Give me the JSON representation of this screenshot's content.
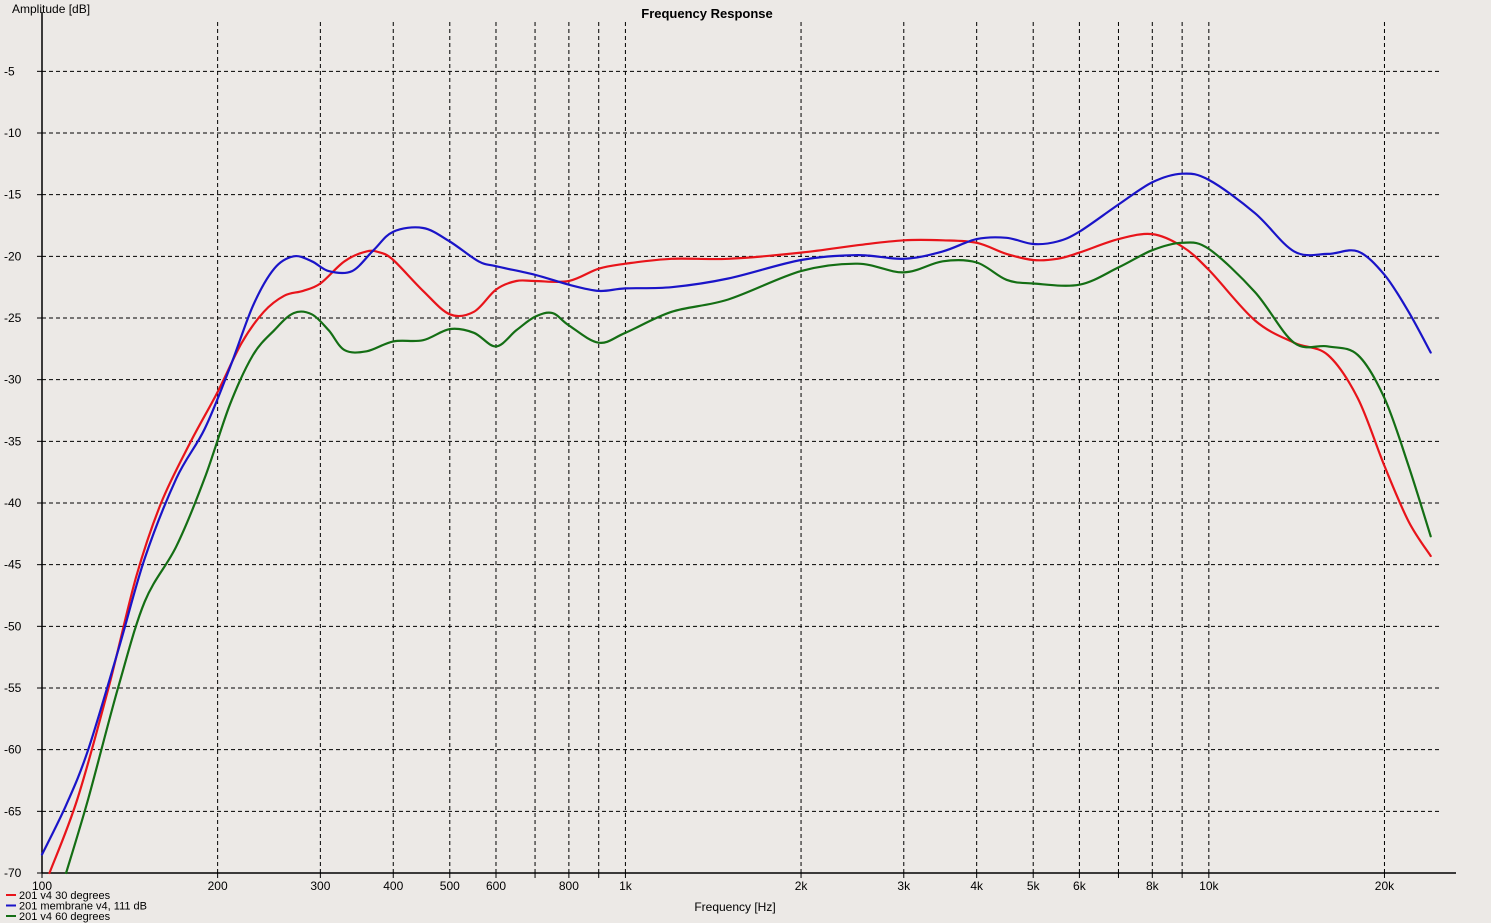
{
  "chart_data": {
    "type": "line",
    "title": "Frequency Response",
    "xlabel": "Frequency [Hz]",
    "ylabel": "Amplitude [dB]",
    "x_scale": "log",
    "xlim": [
      100,
      25000
    ],
    "ylim": [
      -70,
      -1
    ],
    "grid": true,
    "legend_position": "bottom-left",
    "y_ticks": [
      -5,
      -10,
      -15,
      -20,
      -25,
      -30,
      -35,
      -40,
      -45,
      -50,
      -55,
      -60,
      -65,
      -70
    ],
    "x_ticks": [
      {
        "value": 100,
        "label": "100"
      },
      {
        "value": 200,
        "label": "200"
      },
      {
        "value": 300,
        "label": "300"
      },
      {
        "value": 400,
        "label": "400"
      },
      {
        "value": 500,
        "label": "500"
      },
      {
        "value": 600,
        "label": "600"
      },
      {
        "value": 800,
        "label": "800"
      },
      {
        "value": 1000,
        "label": "1k"
      },
      {
        "value": 2000,
        "label": "2k"
      },
      {
        "value": 3000,
        "label": "3k"
      },
      {
        "value": 4000,
        "label": "4k"
      },
      {
        "value": 5000,
        "label": "5k"
      },
      {
        "value": 6000,
        "label": "6k"
      },
      {
        "value": 8000,
        "label": "8k"
      },
      {
        "value": 10000,
        "label": "10k"
      },
      {
        "value": 20000,
        "label": "20k"
      }
    ],
    "minor_x_grid": [
      700,
      900,
      7000,
      9000
    ],
    "series": [
      {
        "name": "201 v4 30 degrees",
        "color": "#e8141a",
        "x": [
          103,
          115,
          130,
          145,
          160,
          180,
          200,
          220,
          240,
          260,
          280,
          300,
          330,
          360,
          380,
          400,
          450,
          500,
          550,
          600,
          650,
          700,
          800,
          900,
          1000,
          1200,
          1500,
          2000,
          2500,
          3000,
          3500,
          4000,
          4500,
          5000,
          5500,
          6000,
          7000,
          8000,
          9000,
          10000,
          12000,
          14000,
          16000,
          18000,
          20000,
          22000,
          24000
        ],
        "y": [
          -70,
          -64,
          -55,
          -46,
          -40,
          -35,
          -31,
          -27,
          -24.5,
          -23.2,
          -22.8,
          -22.2,
          -20.4,
          -19.6,
          -19.7,
          -20.3,
          -22.8,
          -24.7,
          -24.5,
          -22.7,
          -22,
          -22,
          -22,
          -21,
          -20.6,
          -20.2,
          -20.2,
          -19.7,
          -19.1,
          -18.7,
          -18.7,
          -18.9,
          -19.8,
          -20.3,
          -20.2,
          -19.7,
          -18.6,
          -18.2,
          -19.2,
          -21.1,
          -25.2,
          -27,
          -28,
          -31.5,
          -37,
          -41.5,
          -44.3
        ]
      },
      {
        "name": "201 membrane v4, 111 dB",
        "color": "#1a14c8",
        "x": [
          100,
          110,
          120,
          135,
          150,
          170,
          190,
          210,
          230,
          250,
          270,
          290,
          310,
          340,
          370,
          400,
          450,
          500,
          560,
          600,
          700,
          800,
          900,
          1000,
          1200,
          1500,
          2000,
          2500,
          3000,
          3500,
          4000,
          4500,
          5000,
          5500,
          6000,
          7000,
          8000,
          9000,
          10000,
          12000,
          14000,
          16000,
          18000,
          20000,
          22000,
          24000
        ],
        "y": [
          -68.5,
          -64.5,
          -60,
          -52,
          -44.5,
          -38,
          -34,
          -29,
          -24,
          -21,
          -20,
          -20.4,
          -21.2,
          -21.2,
          -19.5,
          -18,
          -17.7,
          -18.8,
          -20.4,
          -20.8,
          -21.5,
          -22.3,
          -22.8,
          -22.6,
          -22.5,
          -21.8,
          -20.3,
          -19.9,
          -20.2,
          -19.6,
          -18.6,
          -18.5,
          -19,
          -18.8,
          -18,
          -15.8,
          -14,
          -13.3,
          -13.8,
          -16.5,
          -19.6,
          -19.8,
          -19.6,
          -21.5,
          -24.5,
          -27.8
        ]
      },
      {
        "name": "201 v4 60 degrees",
        "color": "#146e14",
        "x": [
          110,
          120,
          135,
          150,
          170,
          190,
          210,
          230,
          250,
          270,
          290,
          310,
          330,
          360,
          400,
          450,
          500,
          550,
          600,
          650,
          700,
          750,
          800,
          900,
          1000,
          1200,
          1500,
          2000,
          2500,
          3000,
          3500,
          4000,
          4500,
          5000,
          6000,
          7000,
          8000,
          9000,
          10000,
          12000,
          14000,
          16000,
          18000,
          20000,
          22000,
          24000
        ],
        "y": [
          -70,
          -64,
          -55,
          -48,
          -43.5,
          -38,
          -32,
          -28,
          -26,
          -24.6,
          -24.7,
          -26,
          -27.6,
          -27.7,
          -26.9,
          -26.8,
          -25.9,
          -26.2,
          -27.3,
          -26,
          -24.9,
          -24.6,
          -25.6,
          -27,
          -26.2,
          -24.5,
          -23.5,
          -21.2,
          -20.6,
          -21.3,
          -20.4,
          -20.5,
          -21.9,
          -22.2,
          -22.3,
          -20.9,
          -19.5,
          -18.9,
          -19.4,
          -22.9,
          -27,
          -27.3,
          -28,
          -31.5,
          -37,
          -42.7
        ]
      }
    ]
  }
}
